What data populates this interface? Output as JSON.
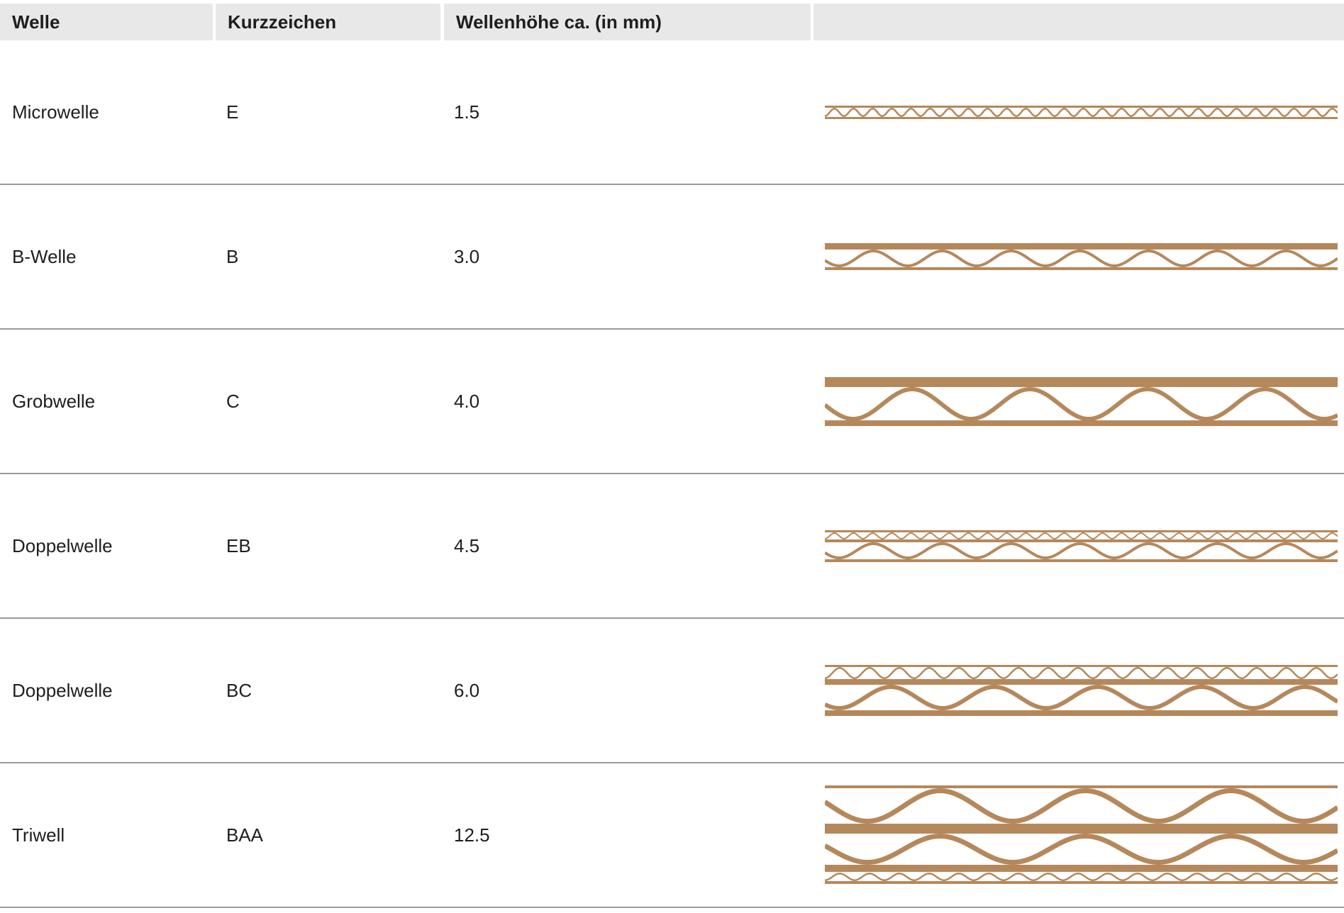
{
  "header": [
    "Welle",
    "Kurzzeichen",
    "Wellenhöhe ca. (in mm)",
    ""
  ],
  "rows": [
    {
      "welle": "Microwelle",
      "kurzzeichen": "E",
      "hoehe": "1.5"
    },
    {
      "welle": "B-Welle",
      "kurzzeichen": "B",
      "hoehe": "3.0"
    },
    {
      "welle": "Grobwelle",
      "kurzzeichen": "C",
      "hoehe": "4.0"
    },
    {
      "welle": "Doppelwelle",
      "kurzzeichen": "EB",
      "hoehe": "4.5"
    },
    {
      "welle": "Doppelwelle",
      "kurzzeichen": "BC",
      "hoehe": "6.0"
    },
    {
      "welle": "Triwell",
      "kurzzeichen": "BAA",
      "hoehe": "12.5"
    }
  ],
  "colors": {
    "cardboard": "#b5885c",
    "header_bg": "#e8e8e8",
    "divider": "#9a9a9a"
  }
}
